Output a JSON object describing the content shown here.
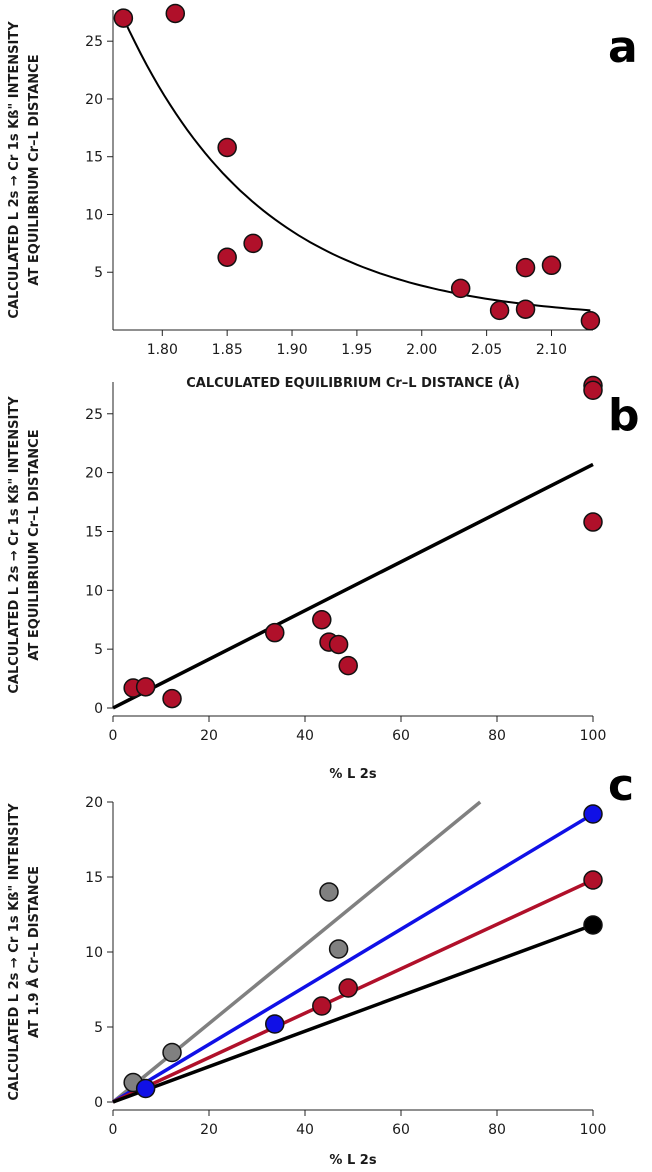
{
  "chart_data": [
    {
      "panel": "a",
      "type": "scatter",
      "xlabel": "CALCULATED EQUILIBRIUM Cr–L DISTANCE (Å)",
      "ylabel": [
        "CALCULATED L 2s → Cr 1s  Kß\" INTENSITY",
        "AT EQUILIBRIUM Cr–L DISTANCE"
      ],
      "xlim": [
        1.762,
        2.132
      ],
      "ylim": [
        0,
        27.7
      ],
      "xticks": [
        "1.80",
        "1.85",
        "1.90",
        "1.95",
        "2.00",
        "2.05",
        "2.10"
      ],
      "yticks": [
        "5",
        "10",
        "15",
        "20",
        "25"
      ],
      "grid": false,
      "series": [
        {
          "color": "#b0102a",
          "points": [
            [
              1.77,
              27.0
            ],
            [
              1.81,
              27.4
            ],
            [
              1.85,
              15.8
            ],
            [
              1.85,
              6.3
            ],
            [
              1.87,
              7.5
            ],
            [
              2.03,
              3.6
            ],
            [
              2.06,
              1.7
            ],
            [
              2.08,
              5.4
            ],
            [
              2.08,
              1.8
            ],
            [
              2.1,
              5.6
            ],
            [
              2.13,
              0.8
            ]
          ]
        }
      ],
      "fit": {
        "kind": "exponential",
        "color": "#000000",
        "points": [
          [
            1.77,
            27.0
          ],
          [
            1.85,
            14.0
          ],
          [
            1.95,
            6.0
          ],
          [
            2.03,
            3.1
          ],
          [
            2.13,
            1.7
          ]
        ]
      }
    },
    {
      "panel": "b",
      "type": "scatter",
      "xlabel": "% L 2s",
      "ylabel": [
        "CALCULATED L 2s → Cr 1s  Kß\" INTENSITY",
        "AT EQUILIBRIUM Cr–L DISTANCE"
      ],
      "xlim": [
        0,
        100
      ],
      "ylim": [
        0,
        27.7
      ],
      "xticks": [
        "0",
        "20",
        "40",
        "60",
        "80",
        "100"
      ],
      "yticks": [
        "0",
        "5",
        "10",
        "15",
        "20",
        "25"
      ],
      "grid": false,
      "series": [
        {
          "color": "#b0102a",
          "points": [
            [
              4.2,
              1.7
            ],
            [
              6.8,
              1.8
            ],
            [
              12.3,
              0.8
            ],
            [
              33.7,
              6.4
            ],
            [
              43.5,
              7.5
            ],
            [
              45.0,
              5.6
            ],
            [
              47.0,
              5.4
            ],
            [
              49.0,
              3.6
            ],
            [
              100,
              27.4
            ],
            [
              100,
              27.0
            ],
            [
              100,
              15.8
            ]
          ]
        }
      ],
      "lines": [
        {
          "color": "#000000",
          "from": [
            0,
            0
          ],
          "to": [
            100,
            20.7
          ]
        }
      ]
    },
    {
      "panel": "c",
      "type": "scatter",
      "xlabel": "% L 2s",
      "ylabel": [
        "CALCULATED L 2s → Cr 1s  Kß\" INTENSITY",
        "AT 1.9 Å Cr–L DISTANCE"
      ],
      "xlim": [
        0,
        100
      ],
      "ylim": [
        0,
        20
      ],
      "xticks": [
        "0",
        "20",
        "40",
        "60",
        "80",
        "100"
      ],
      "yticks": [
        "0",
        "5",
        "10",
        "15",
        "20"
      ],
      "grid": false,
      "series": [
        {
          "color": "#808080",
          "points": [
            [
              4.2,
              1.3
            ],
            [
              12.3,
              3.3
            ],
            [
              45.0,
              14.0
            ],
            [
              47.0,
              10.2
            ]
          ]
        },
        {
          "color": "#1010e6",
          "points": [
            [
              6.8,
              0.9
            ],
            [
              33.7,
              5.2
            ],
            [
              100,
              19.2
            ]
          ]
        },
        {
          "color": "#b0102a",
          "points": [
            [
              43.5,
              6.4
            ],
            [
              49.0,
              7.6
            ],
            [
              100,
              14.8
            ]
          ]
        },
        {
          "color": "#000000",
          "points": [
            [
              100,
              11.8
            ]
          ]
        }
      ],
      "lines": [
        {
          "color": "#808080",
          "from": [
            0,
            0
          ],
          "to": [
            76.5,
            20.0
          ]
        },
        {
          "color": "#1010e6",
          "from": [
            0,
            0
          ],
          "to": [
            100,
            19.2
          ]
        },
        {
          "color": "#b0102a",
          "from": [
            0,
            0
          ],
          "to": [
            100,
            14.8
          ]
        },
        {
          "color": "#000000",
          "from": [
            0,
            0
          ],
          "to": [
            100,
            11.8
          ]
        }
      ]
    }
  ],
  "panel_letters": {
    "a": "a",
    "b": "b",
    "c": "c"
  }
}
